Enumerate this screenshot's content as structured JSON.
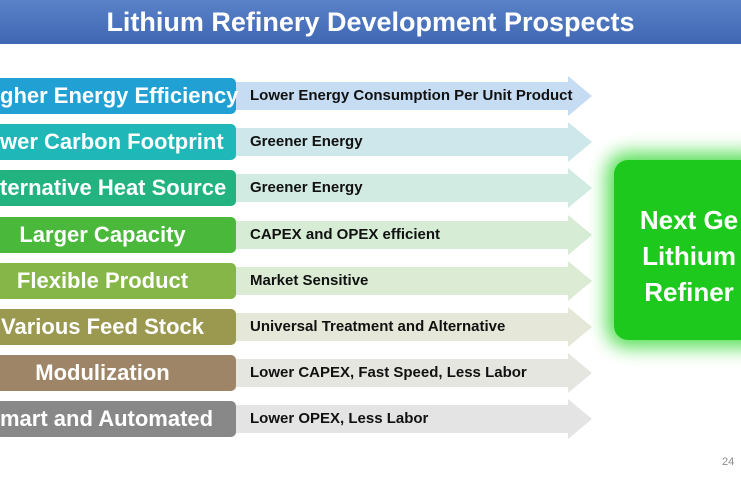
{
  "title": "Lithium Refinery Development Prospects",
  "rows": [
    {
      "label": "gher Energy Efficiency",
      "description": "Lower Energy Consumption Per Unit Product",
      "color": "#21a1d3",
      "arrow_color": "#c5dcf2"
    },
    {
      "label": "wer Carbon Footprint",
      "description": "Greener Energy",
      "color": "#1fb7b8",
      "arrow_color": "#cde7ea"
    },
    {
      "label": "ternative Heat Source",
      "description": "Greener Energy",
      "color": "#23b381",
      "arrow_color": "#d2ebe2"
    },
    {
      "label": "Larger Capacity",
      "description": "CAPEX and OPEX efficient",
      "color": "#49b83b",
      "arrow_color": "#d6ecd5"
    },
    {
      "label": "Flexible Product",
      "description": "Market Sensitive",
      "color": "#86b647",
      "arrow_color": "#dcebd4"
    },
    {
      "label": "Various Feed Stock",
      "description": "Universal Treatment and Alternative",
      "color": "#9b9850",
      "arrow_color": "#e5e7d8"
    },
    {
      "label": "Modulization",
      "description": "Lower CAPEX, Fast Speed, Less Labor",
      "color": "#9e8567",
      "arrow_color": "#e6e6e1"
    },
    {
      "label": "mart and Automated",
      "description": "Lower OPEX, Less Labor",
      "color": "#888888",
      "arrow_color": "#e4e4e4"
    }
  ],
  "next_gen": {
    "line1": "Next Ge",
    "line2": "Lithium",
    "line3": "Refiner",
    "color": "#1ec91e"
  },
  "page_number": "24"
}
